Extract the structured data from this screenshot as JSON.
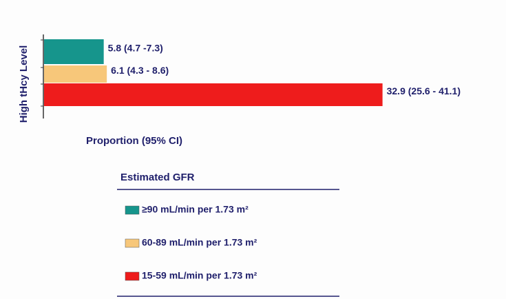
{
  "chart_data": {
    "type": "bar",
    "orientation": "horizontal",
    "y_label": "High tHcy Level",
    "x_label": "Proportion (95% CI)",
    "legend_title": "Estimated GFR",
    "categories": [
      null
    ],
    "xlim": [
      0,
      35
    ],
    "series": [
      {
        "name": "≥90 mL/min per 1.73 m²",
        "color": "#16958c",
        "values": [
          5.8
        ],
        "value_labels": [
          "5.8 (4.7 -7.3)"
        ]
      },
      {
        "name": "60-89 mL/min per 1.73 m²",
        "color": "#f7c77a",
        "values": [
          6.1
        ],
        "value_labels": [
          "6.1 (4.3 - 8.6)"
        ]
      },
      {
        "name": "15-59 mL/min per 1.73 m²",
        "color": "#ee1c1c",
        "values": [
          32.9
        ],
        "value_labels": [
          "32.9 (25.6 - 41.1)"
        ]
      }
    ]
  }
}
